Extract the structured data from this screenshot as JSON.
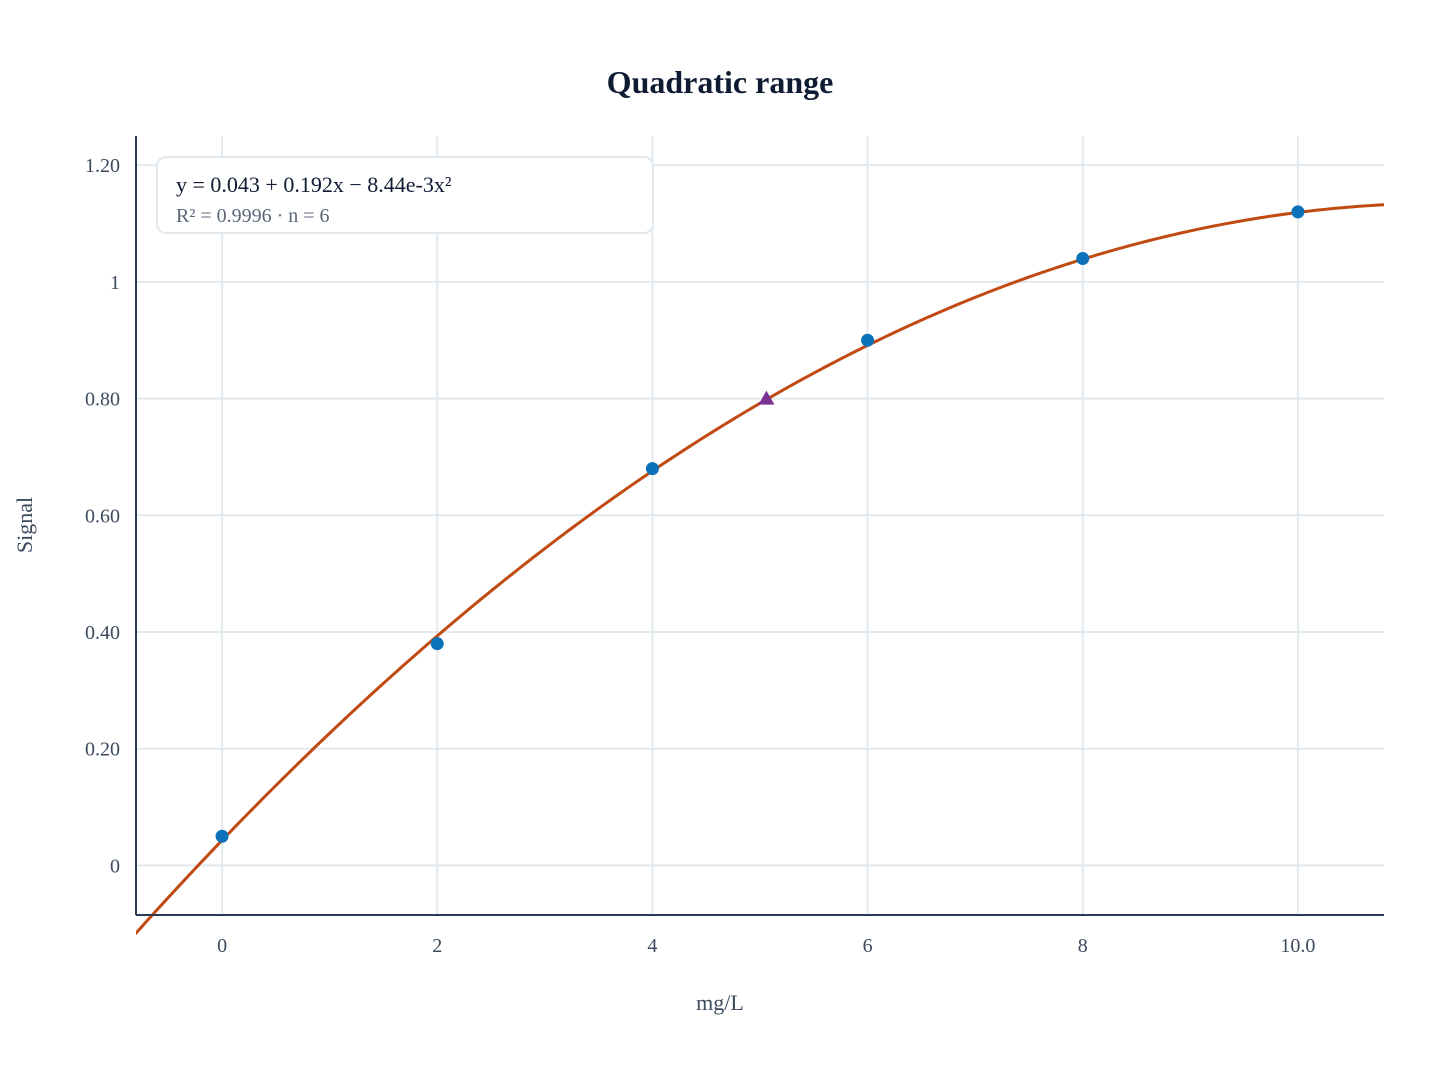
{
  "chart_data": {
    "type": "scatter",
    "title": "Quadratic range",
    "xlabel": "mg/L",
    "ylabel": "Signal",
    "xlim": [
      -0.8,
      10.8
    ],
    "ylim": [
      -0.085,
      1.25
    ],
    "x_ticks": [
      {
        "value": 0,
        "label": "0"
      },
      {
        "value": 2,
        "label": "2"
      },
      {
        "value": 4,
        "label": "4"
      },
      {
        "value": 6,
        "label": "6"
      },
      {
        "value": 8,
        "label": "8"
      },
      {
        "value": 10,
        "label": "10.0"
      }
    ],
    "y_ticks": [
      {
        "value": 0,
        "label": "0"
      },
      {
        "value": 0.2,
        "label": "0.20"
      },
      {
        "value": 0.4,
        "label": "0.40"
      },
      {
        "value": 0.6,
        "label": "0.60"
      },
      {
        "value": 0.8,
        "label": "0.80"
      },
      {
        "value": 1.0,
        "label": "1"
      },
      {
        "value": 1.2,
        "label": "1.20"
      }
    ],
    "grid": true,
    "calibration_points": {
      "x": [
        0,
        2,
        4,
        6,
        8,
        10
      ],
      "y": [
        0.05,
        0.38,
        0.68,
        0.9,
        1.04,
        1.12
      ],
      "color": "#0b72b9",
      "marker": "circle"
    },
    "unknown_point": {
      "x": 5.06,
      "y": 0.8,
      "color": "#7b3294",
      "marker": "triangle"
    },
    "fit": {
      "model": "quadratic",
      "coefficients": [
        0.043,
        0.192,
        -0.00844
      ],
      "color": "#c04a12"
    },
    "annotation": {
      "equation": "y = 0.043 + 0.192x − 8.44e-3x²",
      "stats": "R² = 0.9996 · n = 6"
    },
    "colors": {
      "axis": "#2b3a55",
      "grid": "#e3eaef",
      "tick_label": "#3c4a5e",
      "title": "#0f1b33"
    }
  }
}
